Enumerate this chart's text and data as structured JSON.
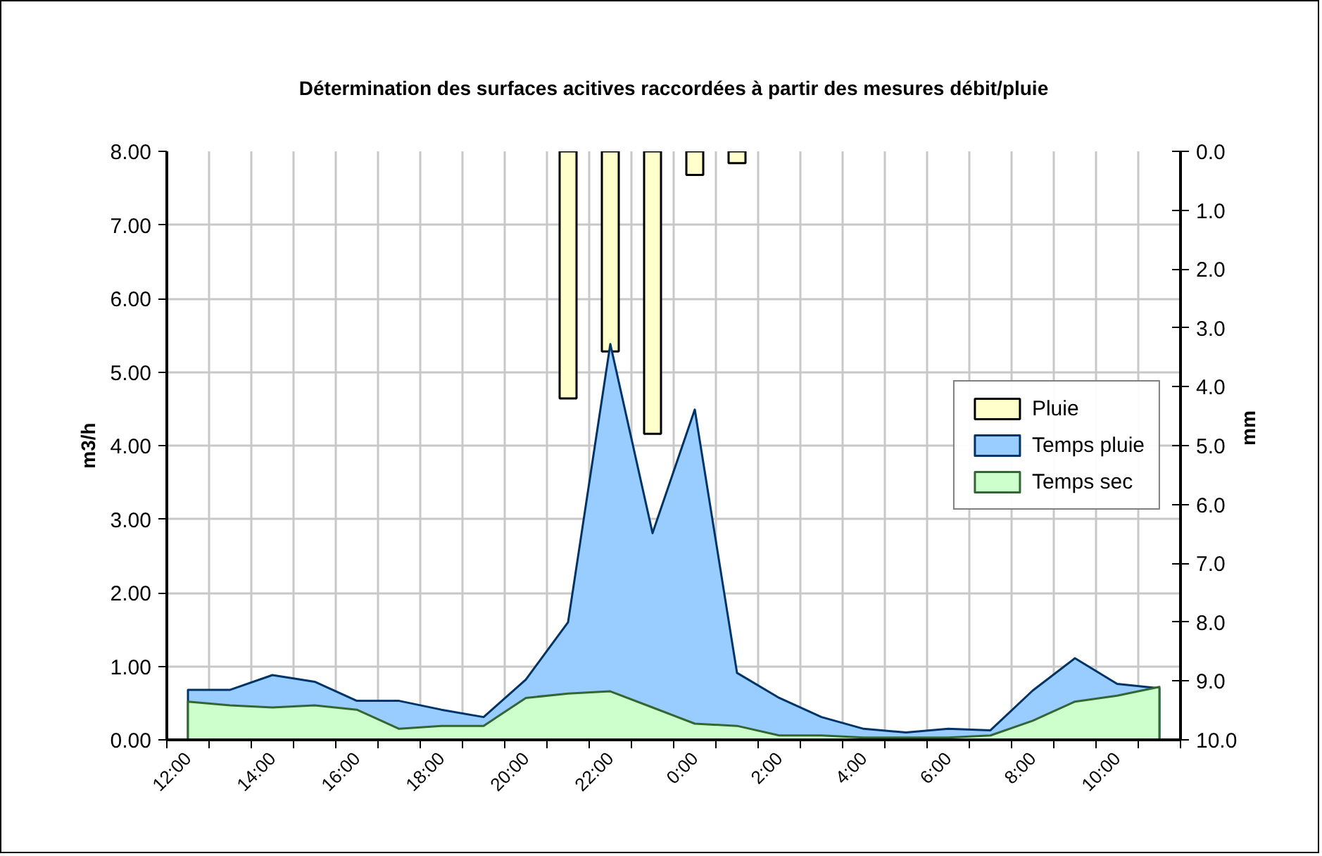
{
  "chart_data": {
    "type": "area",
    "title": "Détermination des surfaces acitives raccordées à partir des mesures débit/pluie",
    "ylabel": "m3/h",
    "y2label": "mm",
    "categories": [
      "12:00",
      null,
      "14:00",
      null,
      "16:00",
      null,
      "18:00",
      null,
      "20:00",
      null,
      "22:00",
      null,
      "0:00",
      null,
      "2:00",
      null,
      "4:00",
      null,
      "6:00",
      null,
      "8:00",
      null,
      "10:00",
      null
    ],
    "series": [
      {
        "name": "Pluie",
        "type": "bar",
        "axis": "y2",
        "color": "#ffffcc",
        "values": [
          null,
          null,
          null,
          null,
          null,
          null,
          null,
          null,
          null,
          4.2,
          3.4,
          4.8,
          0.4,
          0.2,
          null,
          null,
          null,
          null,
          null,
          null,
          null,
          null,
          null,
          null
        ]
      },
      {
        "name": "Temps pluie",
        "color": "#99ccff",
        "values": [
          0.68,
          0.68,
          0.88,
          0.79,
          0.53,
          0.53,
          0.41,
          0.31,
          0.82,
          1.6,
          5.38,
          2.81,
          4.49,
          0.91,
          0.57,
          0.31,
          0.15,
          0.1,
          0.15,
          0.13,
          0.67,
          1.11,
          0.76,
          0.7
        ]
      },
      {
        "name": "Temps sec",
        "color": "#ccffcc",
        "values": [
          0.52,
          0.47,
          0.44,
          0.47,
          0.41,
          0.15,
          0.19,
          0.19,
          0.57,
          0.63,
          0.66,
          0.44,
          0.22,
          0.19,
          0.06,
          0.06,
          0.03,
          0.03,
          0.03,
          0.06,
          0.26,
          0.52,
          0.6,
          0.72
        ]
      }
    ],
    "ylim": [
      0,
      8
    ],
    "yticks": [
      {
        "value": 0,
        "label": "0.00"
      },
      {
        "value": 1,
        "label": "1.00"
      },
      {
        "value": 2,
        "label": "2.00"
      },
      {
        "value": 3,
        "label": "3.00"
      },
      {
        "value": 4,
        "label": "4.00"
      },
      {
        "value": 5,
        "label": "5.00"
      },
      {
        "value": 6,
        "label": "6.00"
      },
      {
        "value": 7,
        "label": "7.00"
      },
      {
        "value": 8,
        "label": "8.00"
      }
    ],
    "y2lim": [
      10,
      0
    ],
    "y2ticks": [
      {
        "value": 0,
        "label": "0.0"
      },
      {
        "value": 1,
        "label": "1.0"
      },
      {
        "value": 2,
        "label": "2.0"
      },
      {
        "value": 3,
        "label": "3.0"
      },
      {
        "value": 4,
        "label": "4.0"
      },
      {
        "value": 5,
        "label": "5.0"
      },
      {
        "value": 6,
        "label": "6.0"
      },
      {
        "value": 7,
        "label": "7.0"
      },
      {
        "value": 8,
        "label": "8.0"
      },
      {
        "value": 9,
        "label": "9.0"
      },
      {
        "value": 10,
        "label": "10.0"
      }
    ],
    "grid": true,
    "legend": "right"
  }
}
